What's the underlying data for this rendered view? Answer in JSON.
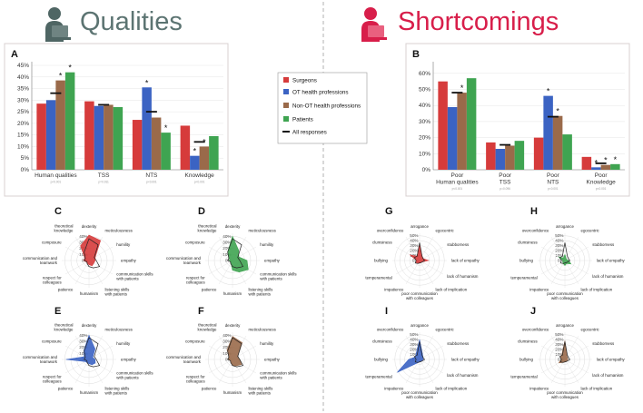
{
  "left_title": "Qualities",
  "right_title": "Shortcomings",
  "colors": {
    "surgeons": "#d63b3b",
    "ot": "#3b63c3",
    "nonot": "#9a6a4a",
    "patients": "#3fa451",
    "all": "#111111",
    "qual_title": "#5c7472",
    "short_title": "#d81e4a",
    "divider": "#b0b0b0",
    "box": "#d8d0d0"
  },
  "icons": {
    "qualities": "person-with-laptop-icon",
    "shortcomings": "person-with-laptop-icon"
  },
  "legend": {
    "surgeons": "Surgeons",
    "ot": "OT health professions",
    "nonot": "Non-OT health professions",
    "patients": "Patients",
    "all": "All responses"
  },
  "chart_data": [
    {
      "panel": "A",
      "type": "bar",
      "categories": [
        "Human qualities",
        "TSS",
        "NTS",
        "Knowledge"
      ],
      "pvalues": [
        "p<0.001",
        "p=0.911",
        "p<0.001",
        "p<0.001"
      ],
      "yticks": [
        "0%",
        "5%",
        "10%",
        "15%",
        "20%",
        "25%",
        "30%",
        "35%",
        "40%",
        "45%"
      ],
      "ylim": [
        0,
        0.45
      ],
      "series": [
        {
          "name": "Surgeons",
          "color": "#d63b3b",
          "values": [
            0.285,
            0.295,
            0.215,
            0.19
          ]
        },
        {
          "name": "OT health professions",
          "color": "#3b63c3",
          "values": [
            0.3,
            0.275,
            0.355,
            0.06
          ]
        },
        {
          "name": "Non-OT health professions",
          "color": "#9a6a4a",
          "values": [
            0.385,
            0.28,
            0.225,
            0.1
          ]
        },
        {
          "name": "Patients",
          "color": "#3fa451",
          "values": [
            0.42,
            0.27,
            0.16,
            0.145
          ]
        }
      ],
      "all_responses": [
        0.33,
        0.28,
        0.25,
        0.12
      ],
      "stars": [
        [
          0,
          2
        ],
        [
          0,
          3
        ],
        [
          2,
          1
        ],
        [
          2,
          3
        ],
        [
          3,
          1
        ],
        [
          3,
          2
        ]
      ]
    },
    {
      "panel": "B",
      "type": "bar",
      "categories": [
        "Poor\nHuman qualities",
        "Poor\nTSS",
        "Poor\nNTS",
        "Poor\nKnowledge"
      ],
      "pvalues": [
        "p<0.001",
        "p=0.096",
        "p<0.001",
        "p<0.001"
      ],
      "yticks": [
        "0%",
        "10%",
        "20%",
        "30%",
        "40%",
        "50%",
        "60%"
      ],
      "ylim": [
        0,
        0.65
      ],
      "series": [
        {
          "name": "Surgeons",
          "color": "#d63b3b",
          "values": [
            0.55,
            0.17,
            0.2,
            0.08
          ]
        },
        {
          "name": "OT health professions",
          "color": "#3b63c3",
          "values": [
            0.39,
            0.13,
            0.46,
            0.015
          ]
        },
        {
          "name": "Non-OT health professions",
          "color": "#9a6a4a",
          "values": [
            0.48,
            0.15,
            0.335,
            0.03
          ]
        },
        {
          "name": "Patients",
          "color": "#3fa451",
          "values": [
            0.57,
            0.18,
            0.22,
            0.035
          ]
        }
      ],
      "all_responses": [
        0.48,
        0.155,
        0.33,
        0.04
      ],
      "stars": [
        [
          0,
          2
        ],
        [
          2,
          1
        ],
        [
          2,
          2
        ],
        [
          3,
          1
        ],
        [
          3,
          2
        ],
        [
          3,
          3
        ]
      ]
    },
    {
      "panel": "C",
      "type": "radar",
      "color": "#d63b3b",
      "rmax": 0.45,
      "rticks": [
        "0%",
        "10%",
        "20%",
        "30%",
        "40%"
      ],
      "axes": [
        "dexterity",
        "meticulousness",
        "humility",
        "empathy",
        "communication skills with patients",
        "listening skills with patients",
        "humanism",
        "patience",
        "respect for colleagues",
        "communication and teamwork",
        "composure",
        "theoretical knowledge"
      ],
      "values": [
        0.42,
        0.38,
        0.12,
        0.1,
        0.09,
        0.1,
        0.07,
        0.05,
        0.05,
        0.09,
        0.08,
        0.28
      ],
      "all_responses": [
        0.36,
        0.3,
        0.1,
        0.12,
        0.2,
        0.14,
        0.1,
        0.06,
        0.04,
        0.08,
        0.07,
        0.16
      ]
    },
    {
      "panel": "D",
      "type": "radar",
      "color": "#3fa451",
      "rmax": 0.45,
      "rticks": [
        "0%",
        "10%",
        "20%",
        "30%",
        "40%"
      ],
      "axes": [
        "dexterity",
        "meticulousness",
        "humility",
        "empathy",
        "communication skills with patients",
        "listening skills with patients",
        "humanism",
        "patience",
        "respect for colleagues",
        "communication and teamwork",
        "composure",
        "theoretical knowledge"
      ],
      "values": [
        0.4,
        0.2,
        0.12,
        0.24,
        0.3,
        0.22,
        0.16,
        0.05,
        0.03,
        0.05,
        0.06,
        0.16
      ],
      "all_responses": [
        0.36,
        0.3,
        0.1,
        0.12,
        0.2,
        0.14,
        0.1,
        0.06,
        0.04,
        0.08,
        0.07,
        0.16
      ]
    },
    {
      "panel": "E",
      "type": "radar",
      "color": "#3b63c3",
      "rmax": 0.45,
      "rticks": [
        "0%",
        "10%",
        "20%",
        "30%",
        "40%"
      ],
      "axes": [
        "dexterity",
        "meticulousness",
        "humility",
        "empathy",
        "communication skills with patients",
        "listening skills with patients",
        "humanism",
        "patience",
        "respect for colleagues",
        "communication and teamwork",
        "composure",
        "theoretical knowledge"
      ],
      "values": [
        0.4,
        0.2,
        0.07,
        0.1,
        0.12,
        0.1,
        0.07,
        0.06,
        0.07,
        0.38,
        0.09,
        0.17
      ],
      "all_responses": [
        0.36,
        0.3,
        0.1,
        0.12,
        0.2,
        0.14,
        0.1,
        0.06,
        0.04,
        0.08,
        0.07,
        0.16
      ]
    },
    {
      "panel": "F",
      "type": "radar",
      "color": "#9a6a4a",
      "rmax": 0.45,
      "rticks": [
        "0%",
        "10%",
        "20%",
        "30%",
        "40%"
      ],
      "axes": [
        "dexterity",
        "meticulousness",
        "humility",
        "empathy",
        "communication skills with patients",
        "listening skills with patients",
        "humanism",
        "patience",
        "respect for colleagues",
        "communication and teamwork",
        "composure",
        "theoretical knowledge"
      ],
      "values": [
        0.38,
        0.32,
        0.1,
        0.12,
        0.17,
        0.12,
        0.1,
        0.05,
        0.04,
        0.07,
        0.06,
        0.18
      ],
      "all_responses": [
        0.36,
        0.3,
        0.1,
        0.12,
        0.2,
        0.14,
        0.1,
        0.06,
        0.04,
        0.08,
        0.07,
        0.16
      ]
    },
    {
      "panel": "G",
      "type": "radar",
      "color": "#d63b3b",
      "rmax": 0.55,
      "rticks": [
        "0%",
        "10%",
        "20%",
        "30%",
        "40%",
        "50%"
      ],
      "axes": [
        "arrogance",
        "egocentric",
        "stubborness",
        "lack of empathy",
        "lack of humanism",
        "lack of implication",
        "poor communication with colleagues",
        "impatience",
        "temperamental",
        "bullying",
        "clumsiness",
        "overconfidence"
      ],
      "values": [
        0.3,
        0.1,
        0.08,
        0.18,
        0.06,
        0.05,
        0.04,
        0.06,
        0.08,
        0.06,
        0.22,
        0.1
      ],
      "all_responses": [
        0.36,
        0.1,
        0.08,
        0.1,
        0.06,
        0.05,
        0.05,
        0.07,
        0.1,
        0.07,
        0.12,
        0.1
      ]
    },
    {
      "panel": "H",
      "type": "radar",
      "color": "#3fa451",
      "rmax": 0.55,
      "rticks": [
        "0%",
        "10%",
        "20%",
        "30%",
        "40%",
        "50%"
      ],
      "axes": [
        "arrogance",
        "egocentric",
        "stubborness",
        "lack of empathy",
        "lack of humanism",
        "lack of implication",
        "poor communication with colleagues",
        "impatience",
        "temperamental",
        "bullying",
        "clumsiness",
        "overconfidence"
      ],
      "values": [
        0.12,
        0.05,
        0.04,
        0.08,
        0.14,
        0.07,
        0.1,
        0.07,
        0.05,
        0.04,
        0.15,
        0.06
      ],
      "all_responses": [
        0.36,
        0.1,
        0.08,
        0.1,
        0.06,
        0.05,
        0.05,
        0.07,
        0.1,
        0.07,
        0.12,
        0.1
      ]
    },
    {
      "panel": "I",
      "type": "radar",
      "color": "#3b63c3",
      "rmax": 0.55,
      "rticks": [
        "0%",
        "10%",
        "20%",
        "30%",
        "40%",
        "50%"
      ],
      "axes": [
        "arrogance",
        "egocentric",
        "stubborness",
        "lack of empathy",
        "lack of humanism",
        "lack of implication",
        "poor communication with colleagues",
        "impatience",
        "temperamental",
        "bullying",
        "clumsiness",
        "overconfidence"
      ],
      "values": [
        0.4,
        0.12,
        0.08,
        0.07,
        0.05,
        0.04,
        0.05,
        0.08,
        0.52,
        0.22,
        0.1,
        0.14
      ],
      "all_responses": [
        0.36,
        0.1,
        0.08,
        0.1,
        0.06,
        0.05,
        0.05,
        0.07,
        0.1,
        0.07,
        0.12,
        0.1
      ]
    },
    {
      "panel": "J",
      "type": "radar",
      "color": "#9a6a4a",
      "rmax": 0.55,
      "rticks": [
        "0%",
        "10%",
        "20%",
        "30%",
        "40%",
        "50%"
      ],
      "axes": [
        "arrogance",
        "egocentric",
        "stubborness",
        "lack of empathy",
        "lack of humanism",
        "lack of implication",
        "poor communication with colleagues",
        "impatience",
        "temperamental",
        "bullying",
        "clumsiness",
        "overconfidence"
      ],
      "values": [
        0.38,
        0.08,
        0.06,
        0.06,
        0.05,
        0.05,
        0.04,
        0.07,
        0.14,
        0.08,
        0.1,
        0.12
      ],
      "all_responses": [
        0.36,
        0.1,
        0.08,
        0.1,
        0.06,
        0.05,
        0.05,
        0.07,
        0.1,
        0.07,
        0.12,
        0.1
      ]
    }
  ]
}
